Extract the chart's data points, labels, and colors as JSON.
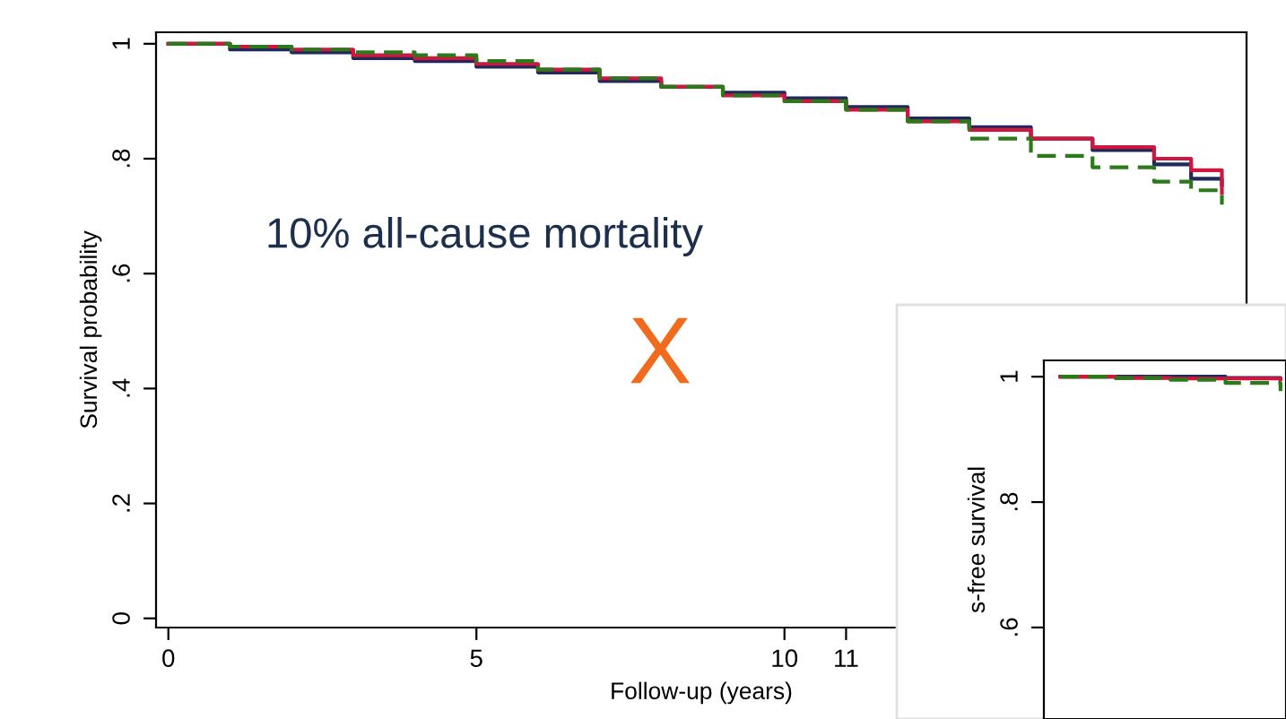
{
  "chart_data": [
    {
      "type": "step",
      "xlabel": "Follow-up (years)",
      "ylabel": "Survival probability",
      "x": [
        0,
        1,
        2,
        3,
        4,
        5,
        6,
        7,
        8,
        9,
        10,
        11,
        12,
        13,
        14,
        15,
        16,
        16.6,
        17.1
      ],
      "series": [
        {
          "color": "#1f2a5a",
          "line_style": "solid",
          "values": [
            1,
            0.99,
            0.985,
            0.975,
            0.97,
            0.96,
            0.95,
            0.935,
            0.925,
            0.915,
            0.905,
            0.89,
            0.87,
            0.855,
            0.835,
            0.815,
            0.79,
            0.765,
            0.755
          ]
        },
        {
          "color": "#d0163f",
          "line_style": "solid",
          "values": [
            1,
            0.995,
            0.99,
            0.98,
            0.975,
            0.965,
            0.955,
            0.94,
            0.925,
            0.91,
            0.9,
            0.885,
            0.865,
            0.85,
            0.835,
            0.82,
            0.8,
            0.78,
            0.74
          ]
        },
        {
          "color": "#2a7a1a",
          "line_style": "dashed",
          "values": [
            1,
            0.995,
            0.99,
            0.985,
            0.98,
            0.97,
            0.955,
            0.94,
            0.925,
            0.91,
            0.9,
            0.885,
            0.865,
            0.835,
            0.805,
            0.785,
            0.76,
            0.745,
            0.72
          ]
        }
      ],
      "xlim": [
        -0.2,
        17.5
      ],
      "ylim": [
        -0.016,
        1.02
      ],
      "xticks": [
        0,
        5,
        10,
        11
      ],
      "yticks": [
        0,
        {
          "value": 0.2,
          "label": ".2"
        },
        {
          "value": 0.4,
          "label": ".4"
        },
        {
          "value": 0.6,
          "label": ".6"
        },
        {
          "value": 0.8,
          "label": ".8"
        },
        1
      ],
      "annotations": [
        "10% all-cause mortality",
        "X"
      ]
    },
    {
      "type": "step",
      "ylabel": "s-free survival",
      "categories": [
        null,
        null,
        null,
        null,
        null
      ],
      "series": [
        {
          "color": "#1f2a5a",
          "line_style": "solid",
          "values": [
            1,
            1,
            1,
            0.998,
            0.997
          ]
        },
        {
          "color": "#d0163f",
          "line_style": "solid",
          "values": [
            1,
            0.998,
            0.997,
            0.997,
            0.996
          ]
        },
        {
          "color": "#2a7a1a",
          "line_style": "dashed",
          "values": [
            1,
            0.998,
            0.995,
            0.99,
            0.977
          ]
        }
      ],
      "ylim": [
        0.454,
        1.026
      ],
      "yticks": [
        {
          "value": 0.6,
          "label": ".6"
        },
        {
          "value": 0.8,
          "label": ".8"
        },
        1
      ],
      "tick_labels": "y"
    }
  ]
}
